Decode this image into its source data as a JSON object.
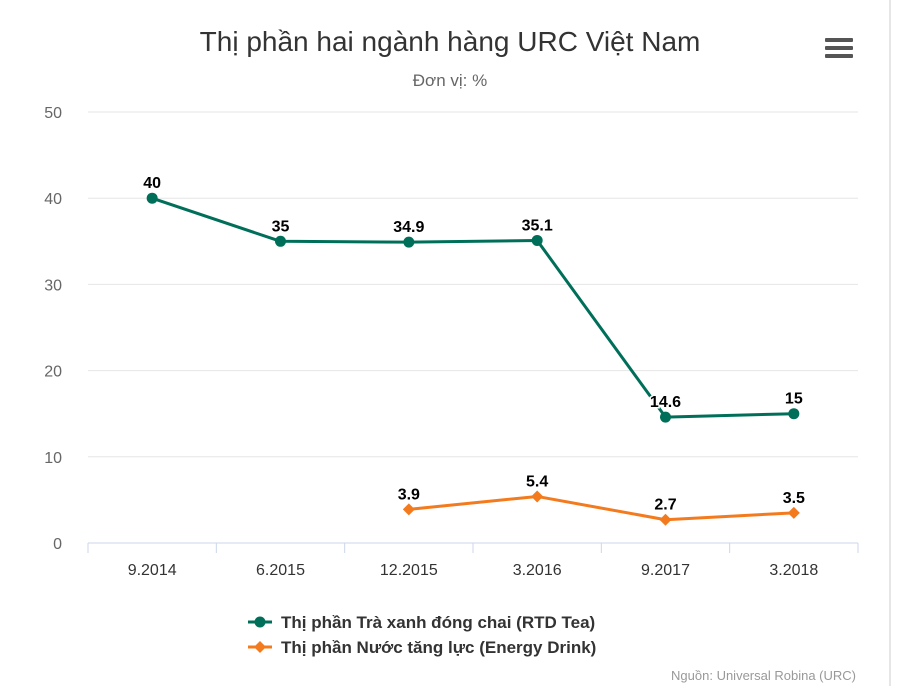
{
  "chart_data": {
    "type": "line",
    "title": "Thị phần hai ngành hàng URC Việt Nam",
    "subtitle": "Đơn vị: %",
    "categories": [
      "9.2014",
      "6.2015",
      "12.2015",
      "3.2016",
      "9.2017",
      "3.2018"
    ],
    "ylim": [
      0,
      50
    ],
    "yticks": [
      0,
      10,
      20,
      30,
      40,
      50
    ],
    "grid": true,
    "legend_position": "bottom",
    "series": [
      {
        "name": "Thị phần Trà xanh đóng chai (RTD Tea)",
        "color": "#006f59",
        "values": [
          40,
          35,
          34.9,
          35.1,
          14.6,
          15
        ]
      },
      {
        "name": "Thị phần Nước tăng lực (Energy Drink)",
        "color": "#f37b1e",
        "values": [
          null,
          null,
          3.9,
          5.4,
          2.7,
          3.5
        ]
      }
    ]
  },
  "source": "Nguồn: Universal Robina (URC)",
  "menu_icon": "hamburger-menu-icon"
}
